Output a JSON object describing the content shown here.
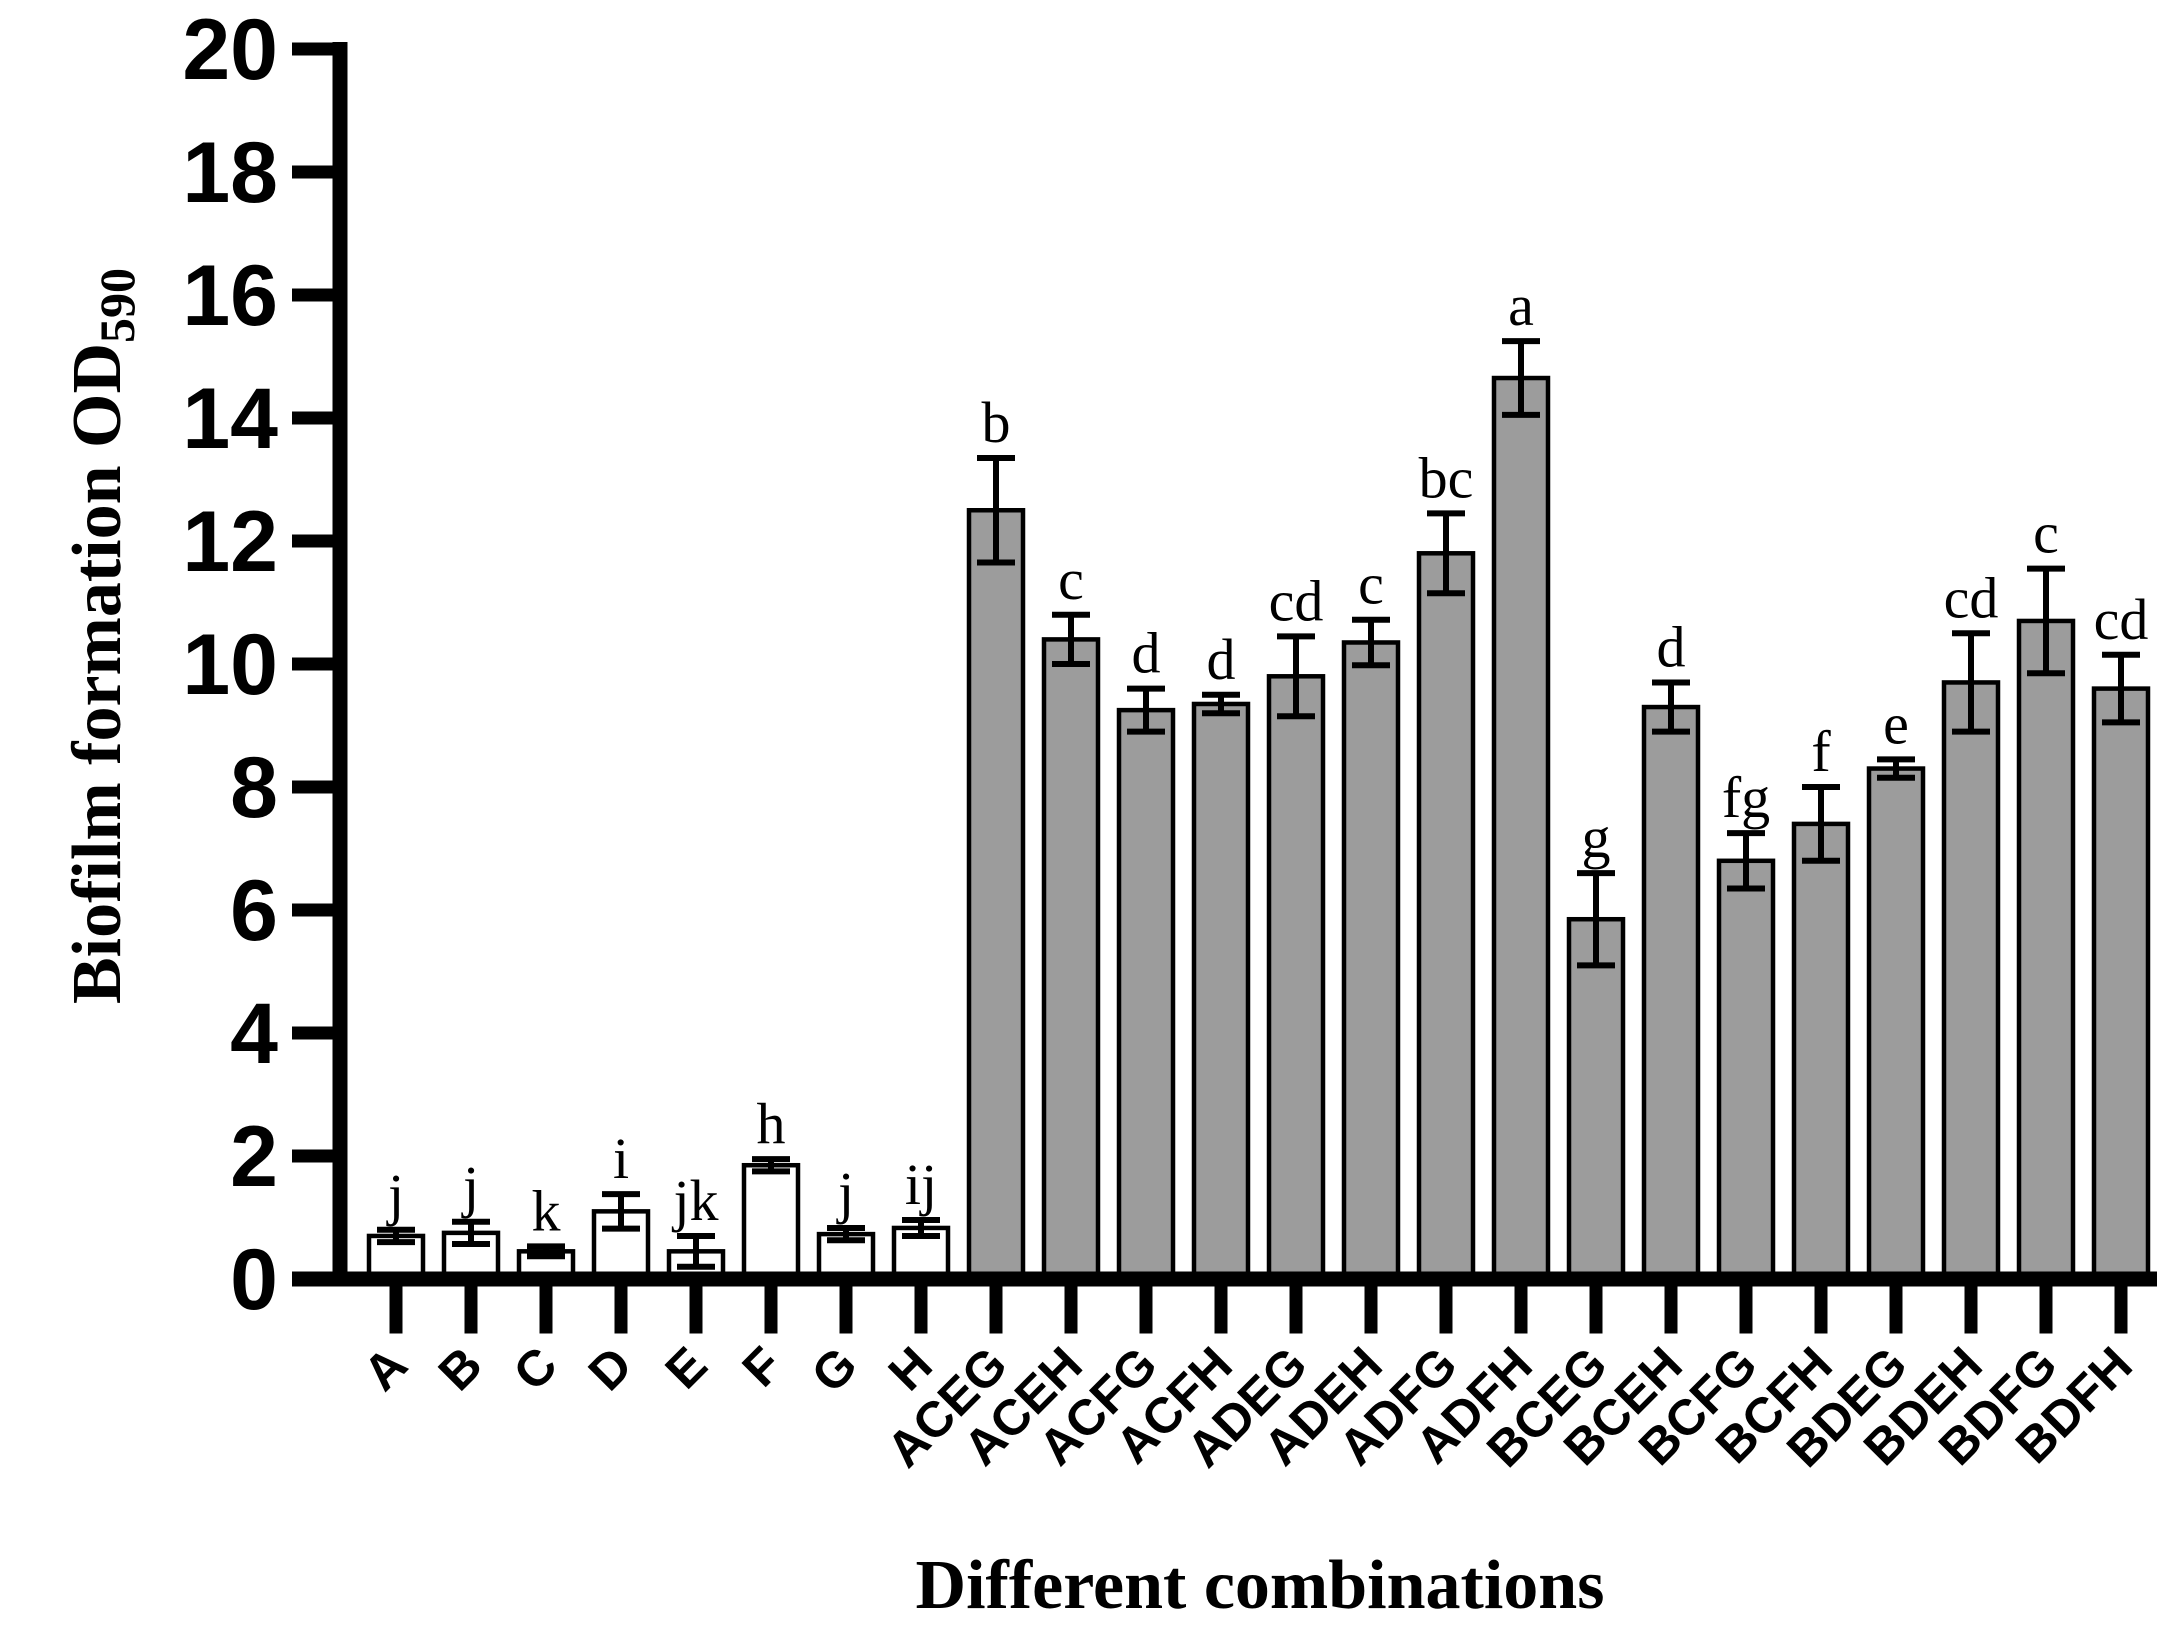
{
  "figure": {
    "background": "#ffffff",
    "y_title_main": "Biofilm formation OD",
    "y_title_sub": "590"
  },
  "chart_data": {
    "type": "bar",
    "title": "",
    "xlabel": "Different combinations",
    "ylabel": "Biofilm formation OD590",
    "ylim": [
      0,
      20
    ],
    "ytick_step": 2,
    "ytick_values": [
      0,
      2,
      4,
      6,
      8,
      10,
      12,
      14,
      16,
      18,
      20
    ],
    "grid": false,
    "legend": "none",
    "bar_outline_color": "#000000",
    "error_bar_color": "#000000",
    "group_fills": {
      "single": "#ffffff",
      "combination": "#9c9c9c"
    },
    "categories": [
      "A",
      "B",
      "C",
      "D",
      "E",
      "F",
      "G",
      "H",
      "ACEG",
      "ACEH",
      "ACFG",
      "ACFH",
      "ADEG",
      "ADEH",
      "ADFG",
      "ADFH",
      "BCEG",
      "BCEH",
      "BCFG",
      "BCFH",
      "BDEG",
      "BDEH",
      "BDFG",
      "BDFH"
    ],
    "values": [
      0.7,
      0.75,
      0.45,
      1.1,
      0.45,
      1.85,
      0.73,
      0.83,
      12.5,
      10.4,
      9.25,
      9.35,
      9.8,
      10.35,
      11.8,
      14.65,
      5.85,
      9.3,
      6.8,
      7.4,
      8.3,
      9.7,
      10.7,
      9.6
    ],
    "errors": [
      0.1,
      0.18,
      0.08,
      0.28,
      0.25,
      0.1,
      0.1,
      0.13,
      0.85,
      0.4,
      0.35,
      0.15,
      0.65,
      0.37,
      0.65,
      0.6,
      0.75,
      0.4,
      0.45,
      0.6,
      0.15,
      0.8,
      0.85,
      0.55
    ],
    "sig_letters": [
      "j",
      "j",
      "k",
      "i",
      "jk",
      "h",
      "j",
      "ij",
      "b",
      "c",
      "d",
      "d",
      "cd",
      "c",
      "bc",
      "a",
      "g",
      "d",
      "fg",
      "f",
      "e",
      "cd",
      "c",
      "cd"
    ],
    "groups": [
      "single",
      "single",
      "single",
      "single",
      "single",
      "single",
      "single",
      "single",
      "combination",
      "combination",
      "combination",
      "combination",
      "combination",
      "combination",
      "combination",
      "combination",
      "combination",
      "combination",
      "combination",
      "combination",
      "combination",
      "combination",
      "combination",
      "combination"
    ]
  }
}
